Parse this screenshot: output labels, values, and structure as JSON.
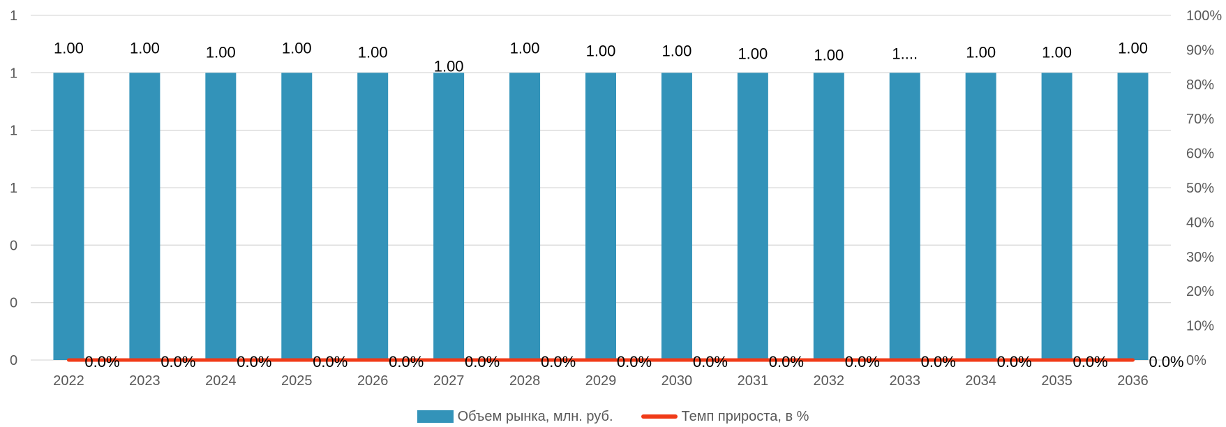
{
  "chart_data": {
    "type": "bar",
    "categories": [
      "2022",
      "2023",
      "2024",
      "2025",
      "2026",
      "2027",
      "2028",
      "2029",
      "2030",
      "2031",
      "2032",
      "2033",
      "2034",
      "2035",
      "2036"
    ],
    "series": [
      {
        "name": "Объем рынка, млн. руб.",
        "kind": "bar",
        "axis": "left",
        "color": "#3393b9",
        "values": [
          1,
          1,
          1,
          1,
          1,
          1,
          1,
          1,
          1,
          1,
          1,
          1,
          1,
          1,
          1
        ],
        "labels": [
          "1.00",
          "1.00",
          "1.00",
          "1.00",
          "1.00",
          "1.00",
          "1.00",
          "1.00",
          "1.00",
          "1.00",
          "1.00",
          "1....",
          "1.00",
          "1.00",
          "1.00"
        ]
      },
      {
        "name": "Темп прироста, в %",
        "kind": "line",
        "axis": "right",
        "color": "#f03a17",
        "values": [
          0,
          0,
          0,
          0,
          0,
          0,
          0,
          0,
          0,
          0,
          0,
          0,
          0,
          0,
          0
        ],
        "labels": [
          "0.0%",
          "0.0%",
          "0.0%",
          "0.0%",
          "0.0%",
          "0.0%",
          "0.0%",
          "0.0%",
          "0.0%",
          "0.0%",
          "0.0%",
          "0.0%",
          "0.0%",
          "0.0%",
          "0.0%"
        ]
      }
    ],
    "left_axis": {
      "ylim": [
        0,
        1.2
      ],
      "ticks": [
        0,
        0.2,
        0.4,
        0.6,
        0.8,
        1.0,
        1.2
      ],
      "tick_labels": [
        "0",
        "0",
        "0",
        "1",
        "1",
        "1",
        "1"
      ]
    },
    "right_axis": {
      "ylim": [
        0,
        1.0
      ],
      "ticks": [
        0,
        0.1,
        0.2,
        0.3,
        0.4,
        0.5,
        0.6,
        0.7,
        0.8,
        0.9,
        1.0
      ],
      "tick_labels": [
        "0%",
        "10%",
        "20%",
        "30%",
        "40%",
        "50%",
        "60%",
        "70%",
        "80%",
        "90%",
        "100%"
      ]
    },
    "grid": true,
    "legend": "bottom",
    "colors": {
      "gridline": "#d9d9d9",
      "tick_text": "#595959"
    }
  }
}
